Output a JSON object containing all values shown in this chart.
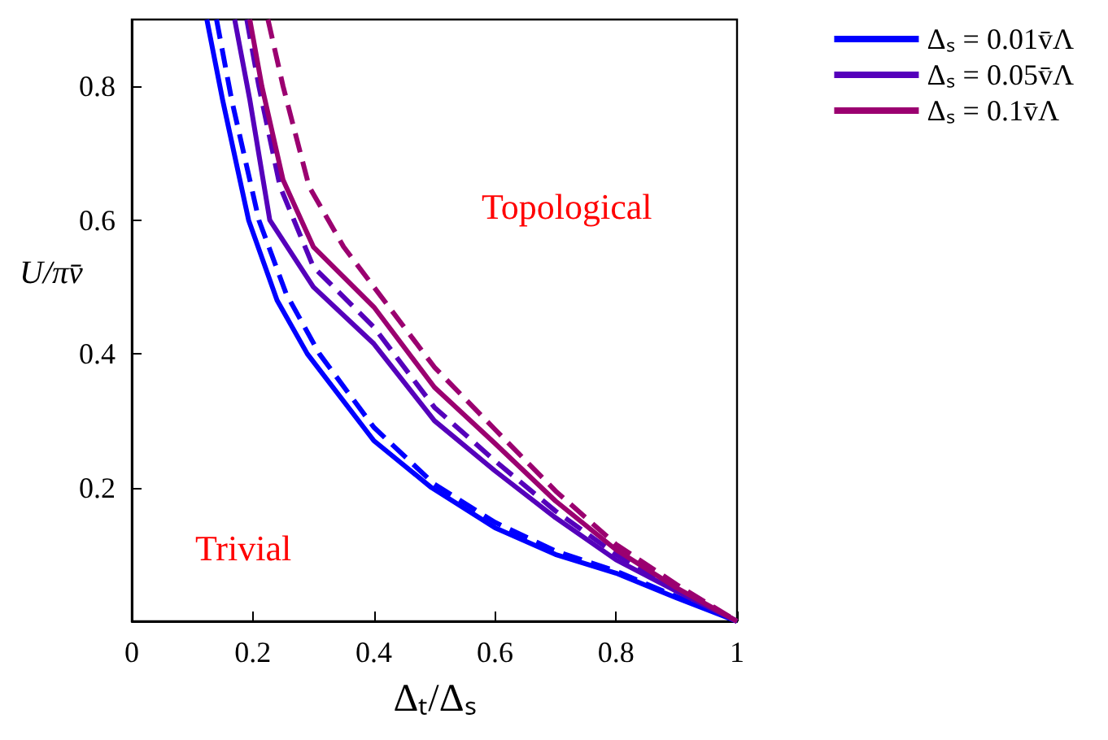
{
  "chart_data": {
    "type": "line",
    "xlabel": "Δₜ/Δₛ",
    "ylabel": "U/πv̄",
    "xlim": [
      0,
      1
    ],
    "ylim": [
      0,
      0.9
    ],
    "xticks": [
      0,
      0.2,
      0.4,
      0.6,
      0.8,
      1
    ],
    "yticks": [
      0.2,
      0.4,
      0.6,
      0.8
    ],
    "grid": false,
    "legend": "top right",
    "marker": "none",
    "annotations": [
      "Topological",
      "Trivial"
    ],
    "series": [
      {
        "name": "Δₛ = 0.01v̄Λ",
        "color": "#0000ff",
        "line_style": "solid",
        "x": [
          0.124,
          0.15,
          0.193,
          0.24,
          0.29,
          0.4,
          0.495,
          0.6,
          0.7,
          0.8,
          0.9,
          1
        ],
        "values": [
          0.9,
          0.78,
          0.6,
          0.48,
          0.4,
          0.27,
          0.2,
          0.14,
          0.1,
          0.072,
          0.035,
          0
        ]
      },
      {
        "name": "Δₛ = 0.05v̄Λ",
        "color": "#5500bb",
        "line_style": "solid",
        "x": [
          0.17,
          0.195,
          0.228,
          0.3,
          0.4,
          0.5,
          0.6,
          0.7,
          0.8,
          0.9,
          1
        ],
        "values": [
          0.9,
          0.78,
          0.6,
          0.5,
          0.415,
          0.3,
          0.225,
          0.155,
          0.092,
          0.045,
          0
        ]
      },
      {
        "name": "Δₛ = 0.1v̄Λ",
        "color": "#9b0070",
        "line_style": "solid",
        "x": [
          0.195,
          0.215,
          0.25,
          0.3,
          0.4,
          0.5,
          0.6,
          0.7,
          0.8,
          0.9,
          1
        ],
        "values": [
          0.9,
          0.8,
          0.66,
          0.56,
          0.47,
          0.35,
          0.266,
          0.18,
          0.107,
          0.05,
          0
        ]
      },
      {
        "color": "#0000ff",
        "line_style": "dashed",
        "x": [
          0.14,
          0.165,
          0.21,
          0.255,
          0.31,
          0.4,
          0.5,
          0.6,
          0.7,
          0.8,
          0.9,
          1
        ],
        "values": [
          0.9,
          0.78,
          0.6,
          0.49,
          0.4,
          0.29,
          0.205,
          0.148,
          0.105,
          0.075,
          0.037,
          0
        ]
      },
      {
        "color": "#5500bb",
        "line_style": "dashed",
        "x": [
          0.19,
          0.21,
          0.245,
          0.3,
          0.4,
          0.5,
          0.6,
          0.7,
          0.8,
          0.9,
          1
        ],
        "values": [
          0.9,
          0.8,
          0.65,
          0.53,
          0.44,
          0.32,
          0.24,
          0.165,
          0.1,
          0.048,
          0
        ]
      },
      {
        "color": "#9b0070",
        "line_style": "dashed",
        "x": [
          0.225,
          0.25,
          0.293,
          0.35,
          0.4,
          0.5,
          0.6,
          0.7,
          0.8,
          0.9,
          1
        ],
        "values": [
          0.9,
          0.8,
          0.65,
          0.56,
          0.5,
          0.38,
          0.287,
          0.195,
          0.115,
          0.055,
          0
        ]
      }
    ]
  }
}
